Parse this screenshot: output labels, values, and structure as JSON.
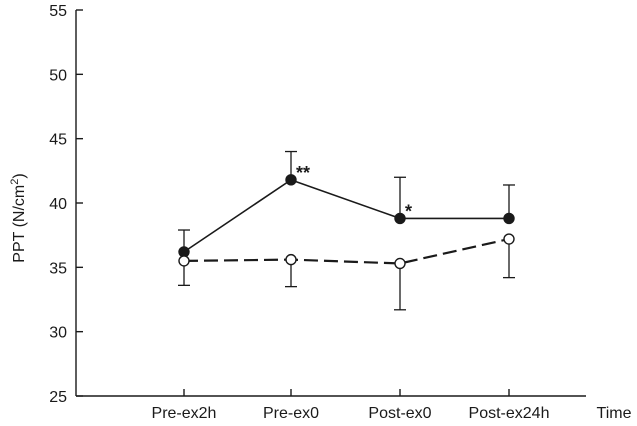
{
  "chart_data": {
    "type": "line",
    "title": "",
    "xlabel": "Time",
    "ylabel_main": "PPT (N/cm",
    "ylabel_sup": "2",
    "ylabel_close": ")",
    "ylim": [
      25,
      55
    ],
    "yticks": [
      25,
      30,
      35,
      40,
      45,
      50,
      55
    ],
    "ytick_labels": [
      "25",
      "30",
      "35",
      "40",
      "45",
      "50",
      "55"
    ],
    "categories": [
      "Pre-ex2h",
      "Pre-ex0",
      "Post-ex0",
      "Post-ex24h"
    ],
    "grid": false,
    "legend": "none",
    "series": [
      {
        "marker": "filled-circle",
        "line_style": "solid",
        "color": "#1a1a1a",
        "values": [
          36.2,
          41.8,
          38.8,
          38.8
        ],
        "err_upper": [
          37.9,
          44.0,
          42.0,
          41.4
        ],
        "err_lower": [
          null,
          null,
          null,
          null
        ],
        "annotations": [
          "",
          "**",
          "*",
          ""
        ]
      },
      {
        "marker": "open-circle",
        "line_style": "dashed",
        "color": "#1a1a1a",
        "values": [
          35.5,
          35.6,
          35.3,
          37.2
        ],
        "err_upper": [
          null,
          null,
          null,
          null
        ],
        "err_lower": [
          33.6,
          33.5,
          31.7,
          34.2
        ],
        "annotations": [
          "",
          "",
          "",
          ""
        ]
      }
    ]
  }
}
